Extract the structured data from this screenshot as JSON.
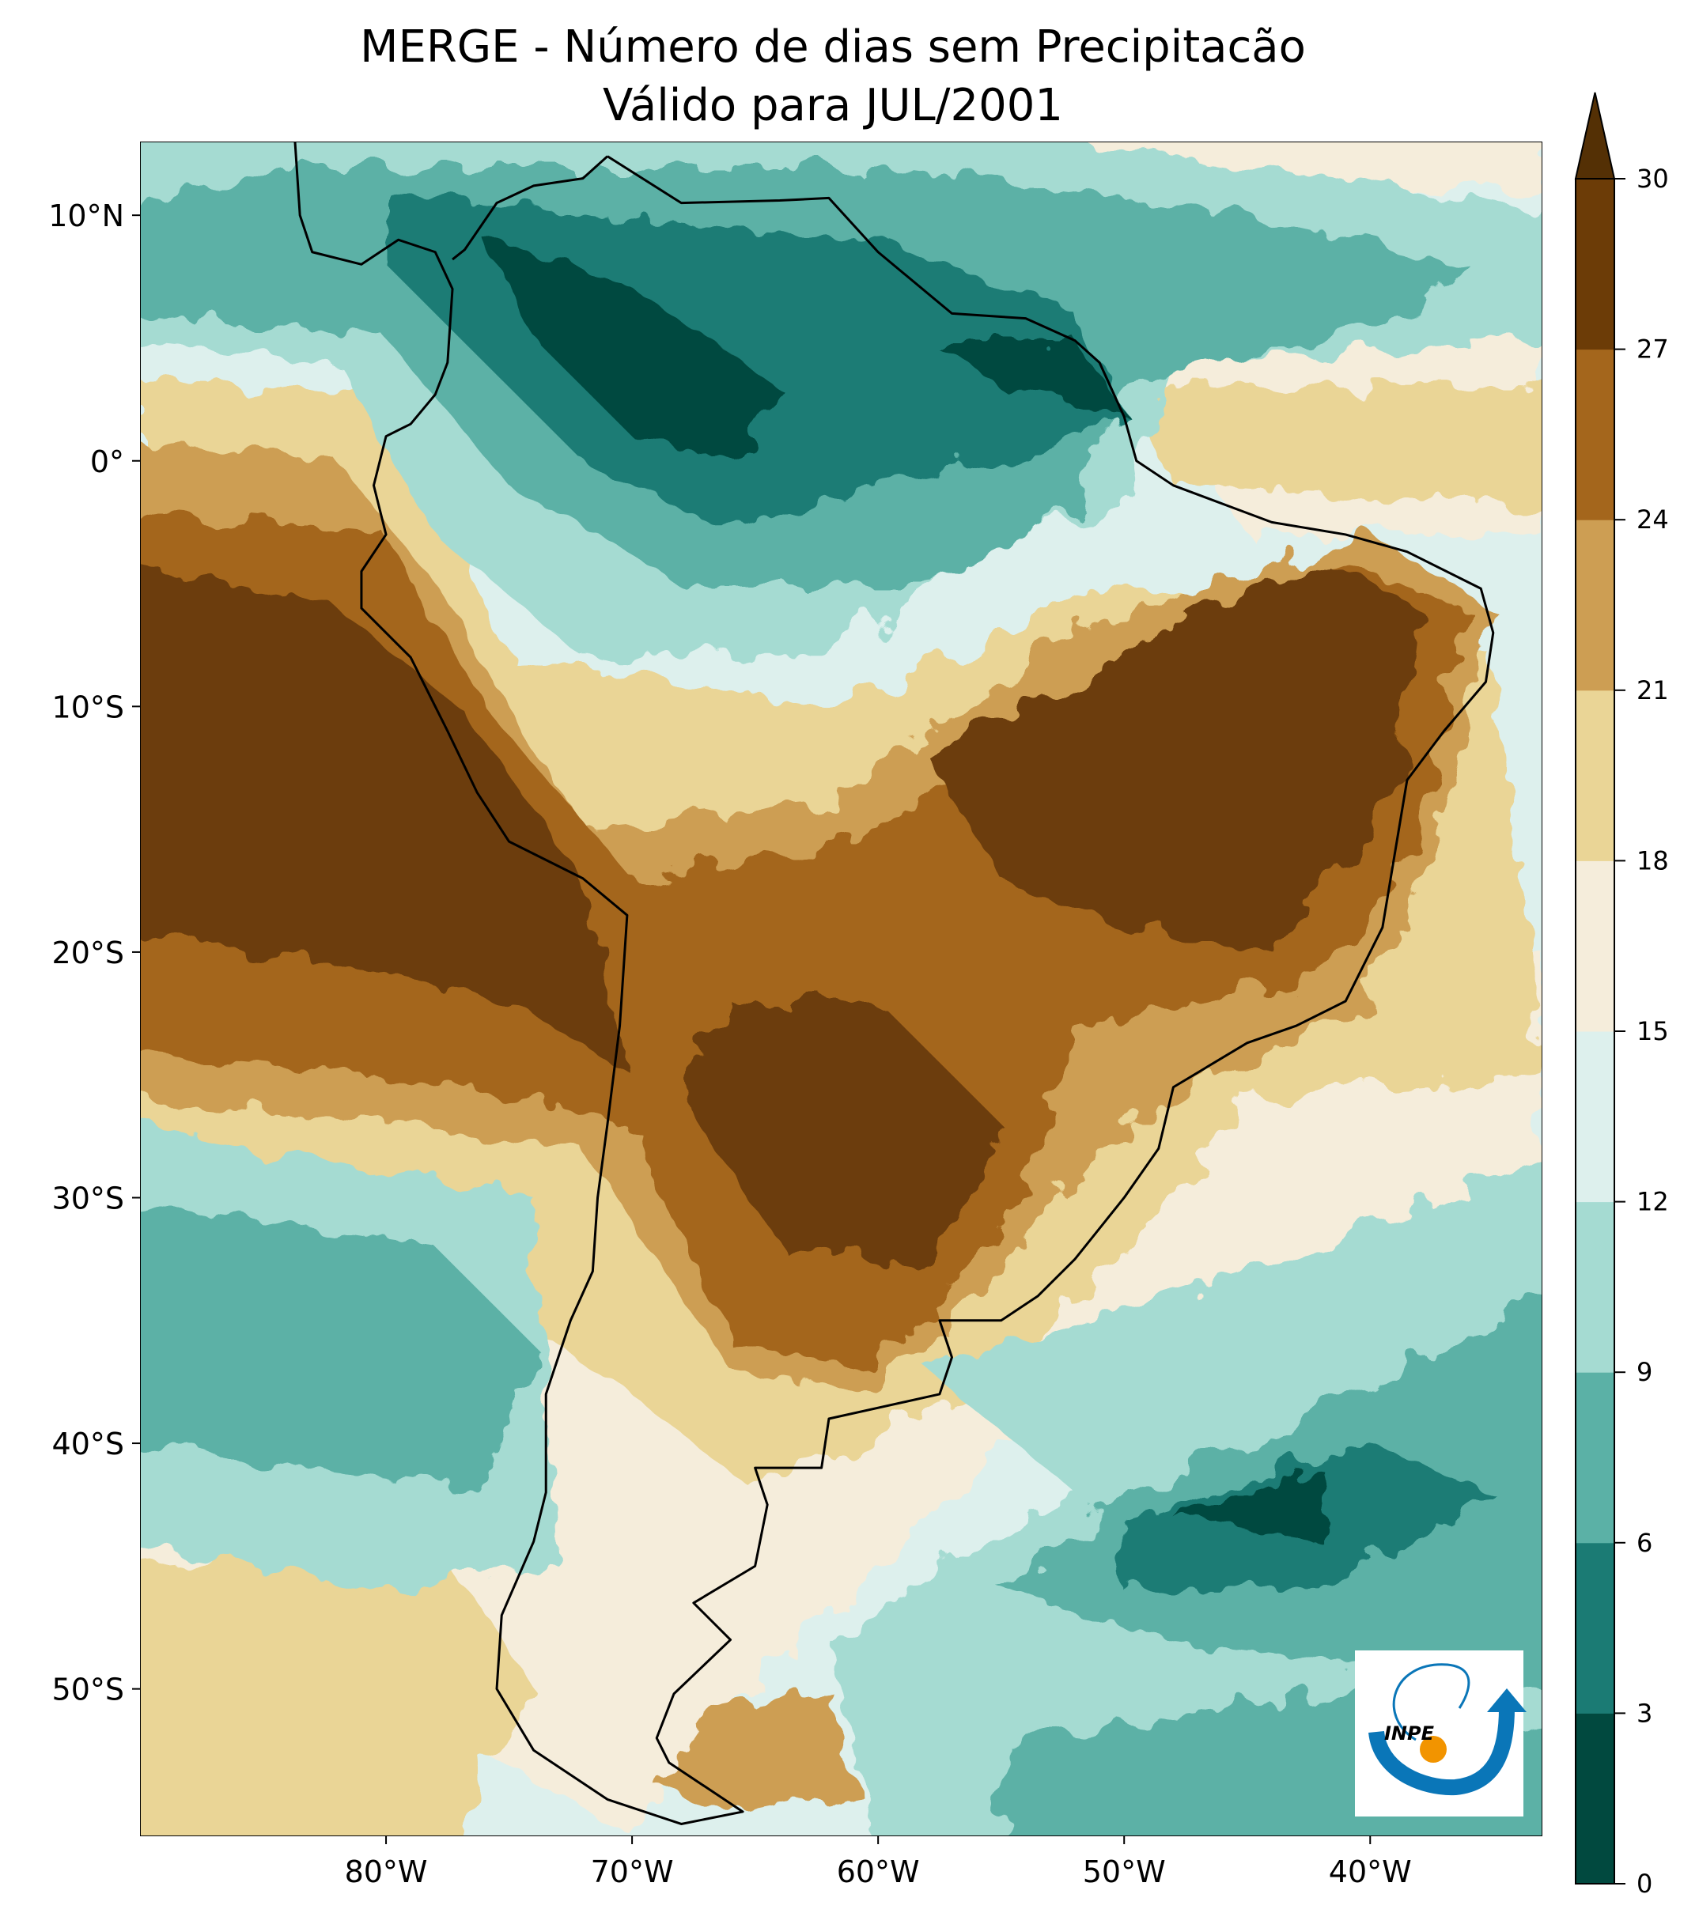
{
  "chart_data": {
    "type": "heatmap",
    "title": "MERGE - Número de dias sem Precipitacão",
    "subtitle": "Válido para JUL/2001",
    "xlabel": "",
    "ylabel": "",
    "x_ticks": [
      {
        "value": -80,
        "label": "80°W"
      },
      {
        "value": -70,
        "label": "70°W"
      },
      {
        "value": -60,
        "label": "60°W"
      },
      {
        "value": -50,
        "label": "50°W"
      },
      {
        "value": -40,
        "label": "40°W"
      }
    ],
    "y_ticks": [
      {
        "value": 10,
        "label": "10°N"
      },
      {
        "value": 0,
        "label": "0°"
      },
      {
        "value": -10,
        "label": "10°S"
      },
      {
        "value": -20,
        "label": "20°S"
      },
      {
        "value": -30,
        "label": "30°S"
      },
      {
        "value": -40,
        "label": "40°S"
      },
      {
        "value": -50,
        "label": "50°S"
      }
    ],
    "xlim": [
      -90,
      -33
    ],
    "ylim": [
      -56,
      13
    ],
    "colorbar": {
      "levels": [
        0,
        3,
        6,
        9,
        12,
        15,
        18,
        21,
        24,
        27,
        30
      ],
      "labels": [
        "0",
        "3",
        "6",
        "9",
        "12",
        "15",
        "18",
        "21",
        "24",
        "27",
        "30"
      ],
      "colors": [
        "#01493f",
        "#1b7b74",
        "#5bb1a6",
        "#a5dbd2",
        "#ddf0ed",
        "#f5eddb",
        "#ead596",
        "#cd9e53",
        "#a4661c",
        "#6c3c07"
      ],
      "extend_color": "#543005",
      "extend": "max"
    }
  },
  "logo": {
    "text": "INPE",
    "blue": "#0a76b8",
    "orange": "#f29400"
  }
}
